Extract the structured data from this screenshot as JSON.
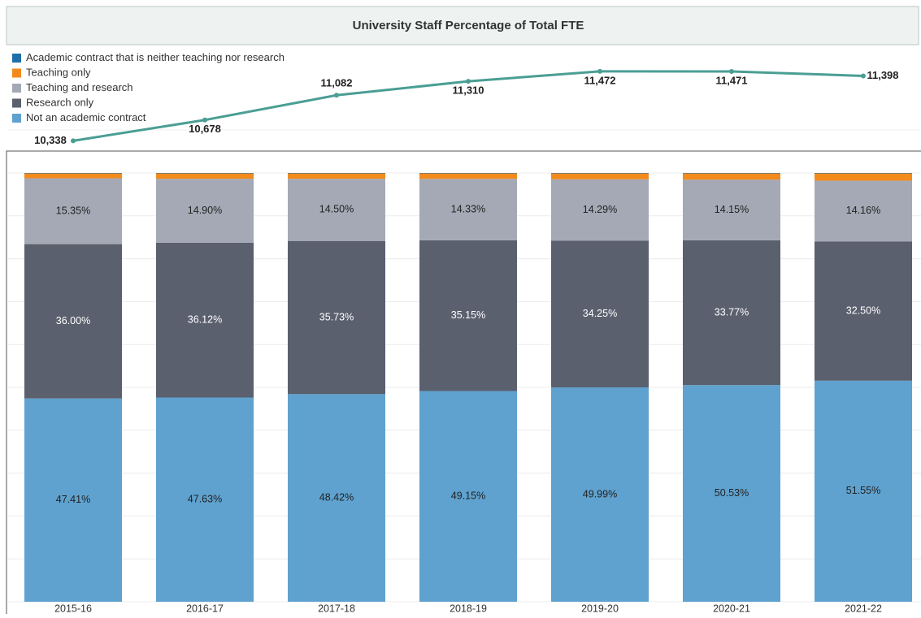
{
  "title": "University Staff Percentage of Total FTE",
  "chart_data": [
    {
      "type": "line",
      "values": [
        10338,
        10678,
        11082,
        11310,
        11472,
        11471,
        11398
      ],
      "value_labels": [
        "10,338",
        "10,678",
        "11,082",
        "11,310",
        "11,472",
        "11,471",
        "11,398"
      ],
      "color": "#4a9e94",
      "ylim": [
        10250,
        11550
      ]
    },
    {
      "type": "bar",
      "stacked": true,
      "categories": [
        "2015-16",
        "2016-17",
        "2017-18",
        "2018-19",
        "2019-20",
        "2020-21",
        "2021-22"
      ],
      "series": [
        {
          "name": "Academic contract that is neither teaching nor research",
          "color": "#1f6fa8",
          "values": [
            0.1,
            0.1,
            0.1,
            0.1,
            0.1,
            0.1,
            0.1
          ]
        },
        {
          "name": "Teaching only",
          "color": "#f28a1c",
          "values": [
            1.14,
            1.25,
            1.25,
            1.27,
            1.37,
            1.45,
            1.69
          ]
        },
        {
          "name": "Teaching and research",
          "color": "#a4a9b5",
          "values": [
            15.35,
            14.9,
            14.5,
            14.33,
            14.29,
            14.15,
            14.16
          ],
          "value_labels": [
            "15.35%",
            "14.90%",
            "14.50%",
            "14.33%",
            "14.29%",
            "14.15%",
            "14.16%"
          ]
        },
        {
          "name": "Research only",
          "color": "#5a606e",
          "values": [
            36.0,
            36.12,
            35.73,
            35.15,
            34.25,
            33.77,
            32.5
          ],
          "value_labels": [
            "36.00%",
            "36.12%",
            "35.73%",
            "35.15%",
            "34.25%",
            "33.77%",
            "32.50%"
          ]
        },
        {
          "name": "Not an academic contract",
          "color": "#5fa2cf",
          "values": [
            47.41,
            47.63,
            48.42,
            49.15,
            49.99,
            50.53,
            51.55
          ],
          "value_labels": [
            "47.41%",
            "47.63%",
            "48.42%",
            "49.15%",
            "49.99%",
            "50.53%",
            "51.55%"
          ]
        }
      ],
      "ylim": [
        0,
        100
      ],
      "yticks": [
        0,
        10,
        20,
        30,
        40,
        50,
        60,
        70,
        80,
        90,
        100
      ],
      "grid": true
    }
  ]
}
